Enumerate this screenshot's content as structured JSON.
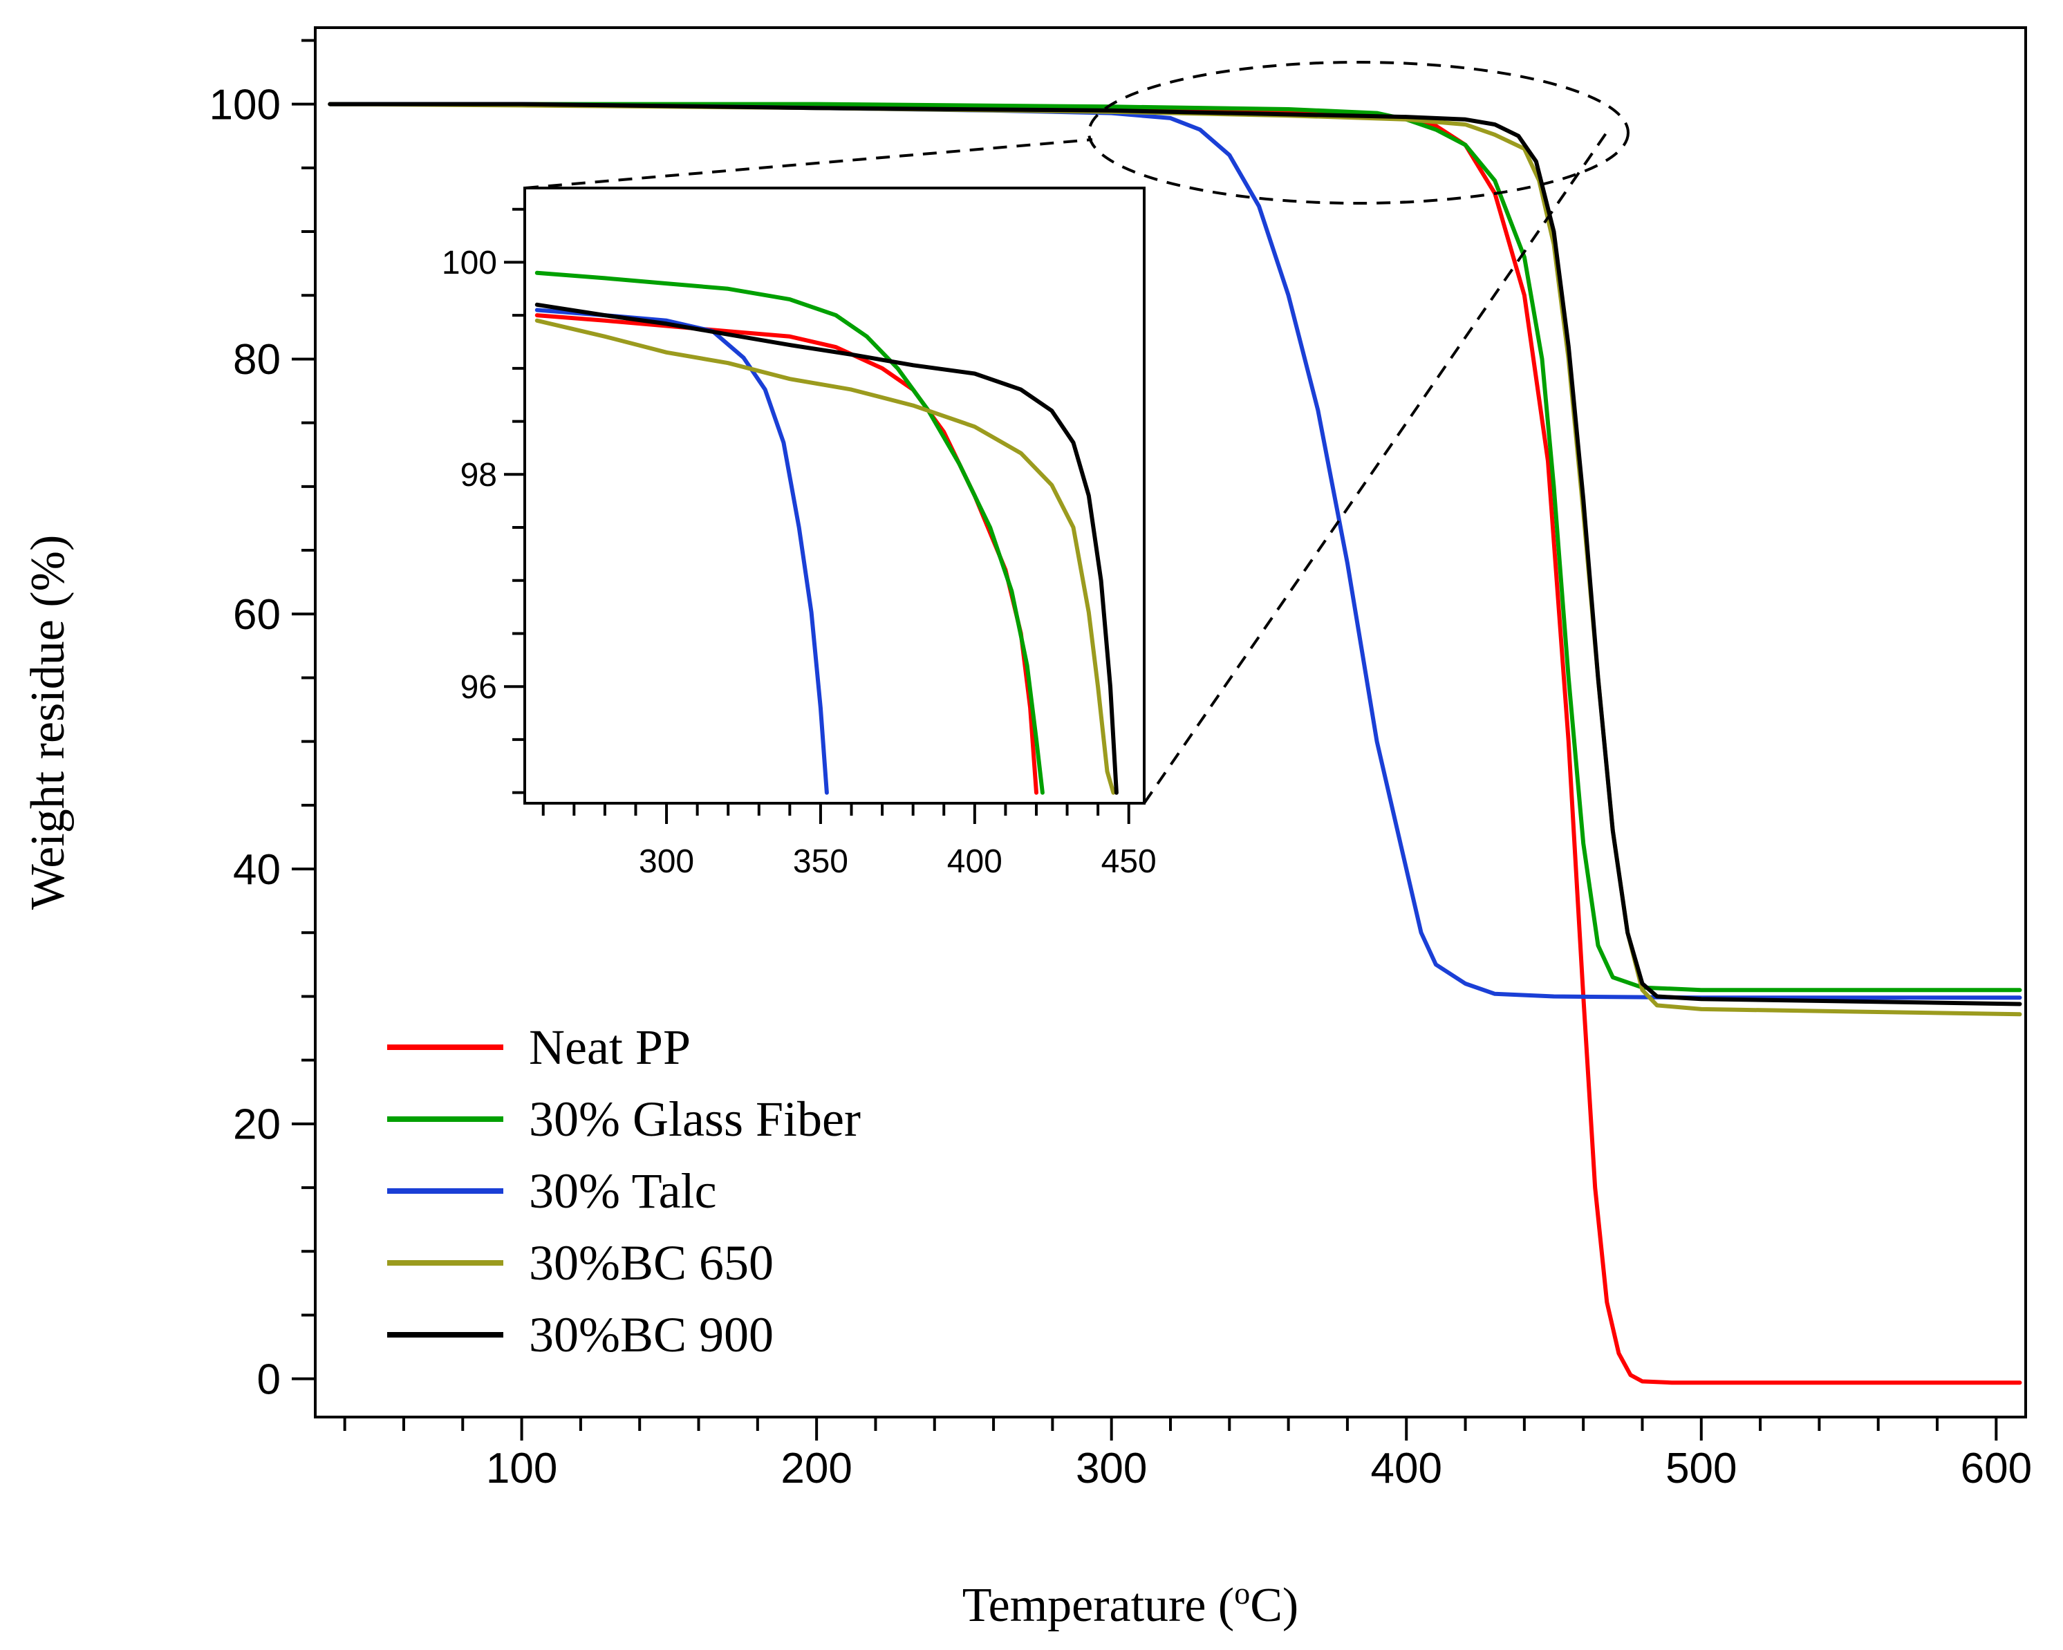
{
  "chart_data": [
    {
      "id": "main",
      "type": "line",
      "title": "",
      "xlabel": "Temperature (",
      "xlabel_sup": "o",
      "xlabel_unit": "C)",
      "ylabel": "Weight residue (%)",
      "xlim": [
        30,
        610
      ],
      "ylim": [
        -3,
        106
      ],
      "x_ticks": [
        100,
        200,
        300,
        400,
        500,
        600
      ],
      "x_tick_labels": [
        "100",
        "200",
        "300",
        "400",
        "500",
        "600"
      ],
      "y_ticks": [
        0,
        20,
        40,
        60,
        80,
        100
      ],
      "y_tick_labels": [
        "0",
        "20",
        "40",
        "60",
        "80",
        "100"
      ],
      "legend_position": "bottom-left",
      "series": [
        {
          "name": "Neat PP",
          "color": "#ff0000",
          "points": [
            [
              35,
              100
            ],
            [
              100,
              100
            ],
            [
              200,
              99.9
            ],
            [
              300,
              99.6
            ],
            [
              360,
              99.3
            ],
            [
              400,
              98.9
            ],
            [
              410,
              98.3
            ],
            [
              420,
              96.8
            ],
            [
              430,
              93
            ],
            [
              440,
              85
            ],
            [
              448,
              72
            ],
            [
              455,
              50
            ],
            [
              460,
              30
            ],
            [
              464,
              15
            ],
            [
              468,
              6
            ],
            [
              472,
              2
            ],
            [
              476,
              0.3
            ],
            [
              480,
              -0.2
            ],
            [
              490,
              -0.3
            ],
            [
              550,
              -0.3
            ],
            [
              608,
              -0.3
            ]
          ]
        },
        {
          "name": "30% Glass Fiber",
          "color": "#00a000",
          "points": [
            [
              35,
              100
            ],
            [
              100,
              100
            ],
            [
              200,
              100
            ],
            [
              300,
              99.8
            ],
            [
              360,
              99.6
            ],
            [
              390,
              99.3
            ],
            [
              400,
              98.8
            ],
            [
              410,
              98
            ],
            [
              420,
              96.8
            ],
            [
              430,
              94
            ],
            [
              440,
              88
            ],
            [
              446,
              80
            ],
            [
              450,
              70
            ],
            [
              455,
              55
            ],
            [
              460,
              42
            ],
            [
              465,
              34
            ],
            [
              470,
              31.5
            ],
            [
              480,
              30.7
            ],
            [
              500,
              30.5
            ],
            [
              608,
              30.5
            ]
          ]
        },
        {
          "name": "30% Talc",
          "color": "#1a3fd6",
          "points": [
            [
              35,
              100
            ],
            [
              100,
              100
            ],
            [
              200,
              99.7
            ],
            [
              260,
              99.5
            ],
            [
              300,
              99.3
            ],
            [
              320,
              98.9
            ],
            [
              330,
              98
            ],
            [
              340,
              96
            ],
            [
              350,
              92
            ],
            [
              360,
              85
            ],
            [
              370,
              76
            ],
            [
              380,
              64
            ],
            [
              385,
              57
            ],
            [
              390,
              50
            ],
            [
              395,
              45
            ],
            [
              400,
              40
            ],
            [
              405,
              35
            ],
            [
              410,
              32.5
            ],
            [
              420,
              31
            ],
            [
              430,
              30.2
            ],
            [
              450,
              30
            ],
            [
              500,
              29.9
            ],
            [
              608,
              29.9
            ]
          ]
        },
        {
          "name": "30%BC 650",
          "color": "#9b9b1e",
          "points": [
            [
              35,
              100
            ],
            [
              100,
              99.9
            ],
            [
              200,
              99.7
            ],
            [
              300,
              99.4
            ],
            [
              360,
              99.1
            ],
            [
              400,
              98.8
            ],
            [
              420,
              98.4
            ],
            [
              430,
              97.6
            ],
            [
              440,
              96.5
            ],
            [
              445,
              94
            ],
            [
              450,
              89
            ],
            [
              455,
              80
            ],
            [
              460,
              68
            ],
            [
              465,
              55
            ],
            [
              470,
              43
            ],
            [
              475,
              35
            ],
            [
              480,
              30.5
            ],
            [
              485,
              29.3
            ],
            [
              500,
              29
            ],
            [
              608,
              28.6
            ]
          ]
        },
        {
          "name": "30%BC 900",
          "color": "#000000",
          "points": [
            [
              35,
              100
            ],
            [
              100,
              100
            ],
            [
              200,
              99.7
            ],
            [
              300,
              99.5
            ],
            [
              360,
              99.2
            ],
            [
              400,
              99
            ],
            [
              420,
              98.8
            ],
            [
              430,
              98.4
            ],
            [
              438,
              97.5
            ],
            [
              444,
              95.5
            ],
            [
              450,
              90
            ],
            [
              455,
              81
            ],
            [
              460,
              69
            ],
            [
              465,
              55
            ],
            [
              470,
              43
            ],
            [
              475,
              35
            ],
            [
              480,
              31
            ],
            [
              485,
              30
            ],
            [
              500,
              29.8
            ],
            [
              608,
              29.4
            ]
          ]
        }
      ]
    },
    {
      "id": "inset",
      "type": "line",
      "title": "",
      "xlabel": "",
      "ylabel": "",
      "xlim": [
        254,
        455
      ],
      "ylim": [
        94.9,
        100.7
      ],
      "x_ticks": [
        300,
        350,
        400,
        450
      ],
      "x_tick_labels": [
        "300",
        "350",
        "400",
        "450"
      ],
      "y_ticks": [
        96,
        98,
        100
      ],
      "y_tick_labels": [
        "96",
        "98",
        "100"
      ],
      "series": [
        {
          "name": "Neat PP",
          "color": "#ff0000",
          "points": [
            [
              258,
              99.5
            ],
            [
              280,
              99.45
            ],
            [
              300,
              99.4
            ],
            [
              320,
              99.35
            ],
            [
              340,
              99.3
            ],
            [
              355,
              99.2
            ],
            [
              370,
              99.0
            ],
            [
              380,
              98.8
            ],
            [
              390,
              98.4
            ],
            [
              400,
              97.8
            ],
            [
              410,
              97.1
            ],
            [
              415,
              96.5
            ],
            [
              418,
              95.8
            ],
            [
              420,
              95
            ]
          ]
        },
        {
          "name": "30% Glass Fiber",
          "color": "#00a000",
          "points": [
            [
              258,
              99.9
            ],
            [
              280,
              99.85
            ],
            [
              300,
              99.8
            ],
            [
              320,
              99.75
            ],
            [
              340,
              99.65
            ],
            [
              355,
              99.5
            ],
            [
              365,
              99.3
            ],
            [
              375,
              99.0
            ],
            [
              385,
              98.6
            ],
            [
              395,
              98.1
            ],
            [
              405,
              97.5
            ],
            [
              412,
              96.9
            ],
            [
              417,
              96.2
            ],
            [
              420,
              95.5
            ],
            [
              422,
              95
            ]
          ]
        },
        {
          "name": "30% Talc",
          "color": "#1a3fd6",
          "points": [
            [
              258,
              99.55
            ],
            [
              280,
              99.5
            ],
            [
              300,
              99.45
            ],
            [
              315,
              99.35
            ],
            [
              325,
              99.1
            ],
            [
              332,
              98.8
            ],
            [
              338,
              98.3
            ],
            [
              343,
              97.5
            ],
            [
              347,
              96.7
            ],
            [
              350,
              95.8
            ],
            [
              352,
              95
            ]
          ]
        },
        {
          "name": "30%BC 650",
          "color": "#9b9b1e",
          "points": [
            [
              258,
              99.45
            ],
            [
              280,
              99.3
            ],
            [
              300,
              99.15
            ],
            [
              320,
              99.05
            ],
            [
              340,
              98.9
            ],
            [
              360,
              98.8
            ],
            [
              380,
              98.65
            ],
            [
              400,
              98.45
            ],
            [
              415,
              98.2
            ],
            [
              425,
              97.9
            ],
            [
              432,
              97.5
            ],
            [
              437,
              96.7
            ],
            [
              440,
              96
            ],
            [
              443,
              95.2
            ],
            [
              445,
              95
            ]
          ]
        },
        {
          "name": "30%BC 900",
          "color": "#000000",
          "points": [
            [
              258,
              99.6
            ],
            [
              280,
              99.5
            ],
            [
              300,
              99.42
            ],
            [
              320,
              99.32
            ],
            [
              340,
              99.22
            ],
            [
              360,
              99.13
            ],
            [
              380,
              99.03
            ],
            [
              400,
              98.95
            ],
            [
              415,
              98.8
            ],
            [
              425,
              98.6
            ],
            [
              432,
              98.3
            ],
            [
              437,
              97.8
            ],
            [
              441,
              97
            ],
            [
              444,
              96
            ],
            [
              446,
              95
            ]
          ]
        }
      ]
    }
  ]
}
